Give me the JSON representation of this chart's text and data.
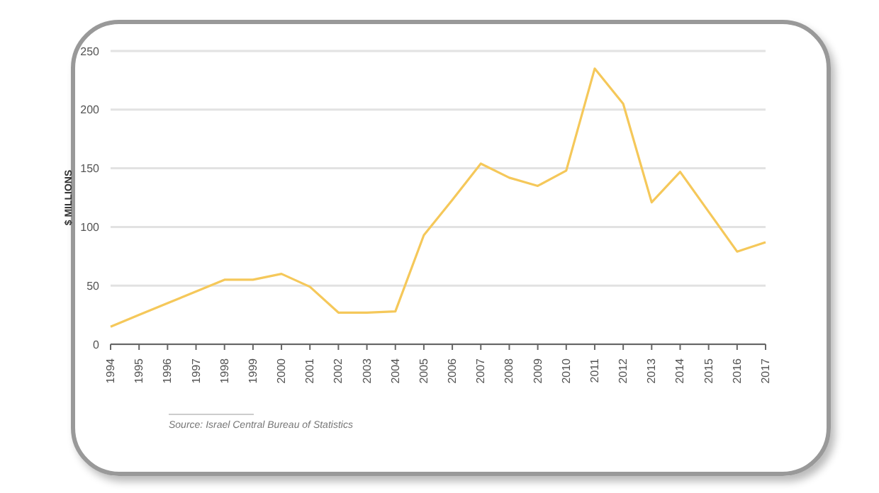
{
  "chart_data": {
    "type": "line",
    "ylabel": "$ MILLIONS",
    "categories": [
      "1994",
      "1995",
      "1996",
      "1997",
      "1998",
      "1999",
      "2000",
      "2001",
      "2002",
      "2003",
      "2004",
      "2005",
      "2006",
      "2007",
      "2008",
      "2009",
      "2010",
      "2011",
      "2012",
      "2013",
      "2014",
      "2015",
      "2016",
      "2017"
    ],
    "series": [
      {
        "color": "#f5c85a",
        "values": [
          15,
          25,
          35,
          45,
          55,
          55,
          60,
          49,
          27,
          27,
          28,
          93,
          123,
          154,
          142,
          135,
          148,
          235,
          205,
          121,
          147,
          113,
          79,
          87
        ]
      }
    ],
    "ylim": [
      0,
      250
    ],
    "yticks": [
      0,
      50,
      100,
      150,
      200,
      250
    ],
    "grid": "y",
    "legend": false,
    "marker": "none",
    "line_style": "solid",
    "annotations": [
      "Source: Israel Central Bureau of Statistics"
    ]
  }
}
